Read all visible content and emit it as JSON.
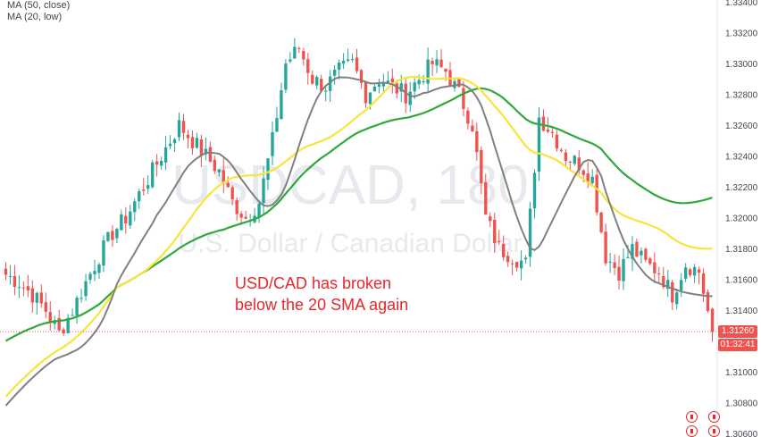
{
  "legend": {
    "ma50": "MA (50, close)",
    "ma20": "MA (20, low)"
  },
  "watermark": {
    "symbol": "USDCAD, 180",
    "description": "U.S. Dollar / Canadian Dollar"
  },
  "annotation": {
    "line1": "USD/CAD has broken",
    "line2": "below the 20 SMA again"
  },
  "price_badge": {
    "price": "1.31260",
    "countdown": "01:32:41"
  },
  "colors": {
    "up": "#26a69a",
    "down": "#ef5350",
    "ma50": "#2fa83a",
    "ma20": "#808080",
    "sma_yellow": "#f7e53b",
    "annotation": "#e8262d",
    "axis_text": "#434651"
  },
  "chart_data": {
    "type": "candlestick",
    "y_ticks": [
      "1.33400",
      "1.33200",
      "1.33000",
      "1.32800",
      "1.32600",
      "1.32400",
      "1.32200",
      "1.32000",
      "1.31800",
      "1.31600",
      "1.31400",
      "1.31260",
      "1.31000",
      "1.30800",
      "1.30600"
    ],
    "ylim": [
      1.306,
      1.334
    ],
    "last_price": 1.3126,
    "n_bars": 160,
    "series": [
      {
        "name": "MA (50, close)"
      },
      {
        "name": "MA (20, low)"
      }
    ],
    "yellow_ma": {
      "start": 1.3084,
      "end": 1.318
    },
    "green_ma": {
      "start": 1.312,
      "end": 1.3213
    },
    "grey_ma": {
      "start": 1.3078,
      "end": 1.3149
    },
    "close_path": [
      1.3163,
      1.3158,
      1.315,
      1.314,
      1.3125,
      1.314,
      1.3158,
      1.3175,
      1.319,
      1.32,
      1.3215,
      1.323,
      1.3245,
      1.326,
      1.325,
      1.324,
      1.323,
      1.321,
      1.32,
      1.321,
      1.325,
      1.33,
      1.331,
      1.329,
      1.3285,
      1.3295,
      1.33,
      1.328,
      1.329,
      1.3285,
      1.328,
      1.329,
      1.33,
      1.3295,
      1.328,
      1.326,
      1.32,
      1.318,
      1.3175,
      1.317,
      1.3265,
      1.3255,
      1.324,
      1.3235,
      1.3225,
      1.3175,
      1.3165,
      1.318,
      1.317,
      1.3165,
      1.315,
      1.317,
      1.3165,
      1.3126
    ]
  }
}
